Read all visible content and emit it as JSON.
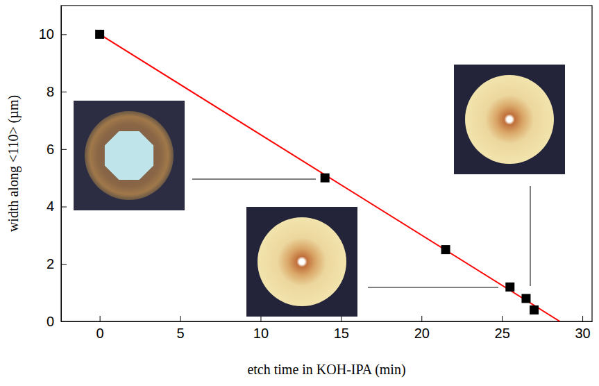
{
  "chart_data": {
    "type": "scatter",
    "x_label": "etch time in KOH-IPA (min)",
    "y_label": "width along <110> (µm)",
    "xlim": [
      -2.4,
      30.6
    ],
    "ylim": [
      0,
      11
    ],
    "xticks": [
      0,
      5,
      10,
      15,
      20,
      25,
      30
    ],
    "yticks": [
      0,
      2,
      4,
      6,
      8,
      10
    ],
    "series": [
      {
        "type": "scatter",
        "color": "#000000",
        "marker": "square",
        "x": [
          0,
          14,
          21.5,
          25.5,
          26.5,
          27
        ],
        "values": [
          10,
          5,
          2.5,
          1.2,
          0.8,
          0.4
        ]
      },
      {
        "type": "line",
        "color": "#ff0000",
        "line_style": "solid",
        "x": [
          0,
          28.6
        ],
        "values": [
          10,
          0
        ]
      }
    ]
  }
}
